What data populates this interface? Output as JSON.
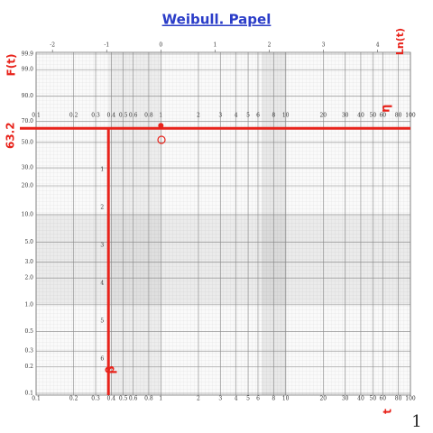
{
  "chart_data": {
    "type": "weibull_paper",
    "title": "Weibull. Papel",
    "y_label": "F(t)",
    "x_label": "t",
    "x2_label": "Ln(t)",
    "page_number": "1",
    "xlim": [
      0.1,
      100
    ],
    "log_x": true,
    "xticks": [
      0.1,
      0.2,
      0.3,
      0.4,
      0.5,
      0.6,
      0.8,
      1,
      2,
      3,
      4,
      5,
      6,
      8,
      10,
      20,
      30,
      40,
      50,
      60,
      80,
      100
    ],
    "x2ticks": [
      -2,
      -1,
      0,
      1,
      2,
      3,
      4
    ],
    "ylim": [
      0.1,
      99.9
    ],
    "yticks": [
      {
        "value": 99.9,
        "label": "99.9"
      },
      {
        "value": 99,
        "label": "99.0"
      },
      {
        "value": 90,
        "label": "90.0"
      },
      {
        "value": 70,
        "label": "70.0"
      },
      {
        "value": 50,
        "label": "50.0"
      },
      {
        "value": 30,
        "label": "30.0"
      },
      {
        "value": 20,
        "label": "20.0"
      },
      {
        "value": 10,
        "label": "10.0"
      },
      {
        "value": 5,
        "label": "5.0"
      },
      {
        "value": 3,
        "label": "3.0"
      },
      {
        "value": 2,
        "label": "2.0"
      },
      {
        "value": 1,
        "label": "1.0"
      },
      {
        "value": 0.5,
        "label": "0.5"
      },
      {
        "value": 0.3,
        "label": "0.3"
      },
      {
        "value": 0.2,
        "label": "0.2"
      },
      {
        "value": 0.1,
        "label": "0.1"
      }
    ],
    "beta_scale": [
      1,
      2,
      3,
      4,
      5,
      6
    ],
    "grid": true,
    "color": "#e8231b",
    "hline": {
      "value": 63.2,
      "label": "63.2"
    },
    "vline": {
      "value": 0.38,
      "label": "β"
    },
    "eta_label": "η",
    "reference_point": {
      "x": 1,
      "y": 63.2
    }
  }
}
